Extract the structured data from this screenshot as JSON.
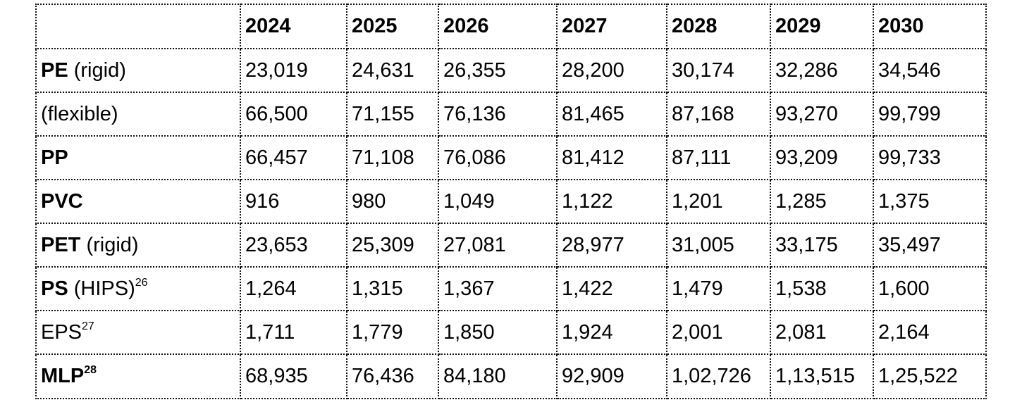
{
  "table": {
    "headers": [
      "",
      "2024",
      "2025",
      "2026",
      "2027",
      "2028",
      "2029",
      "2030"
    ],
    "rows": [
      {
        "label_bold": "PE",
        "label_rest": " (rigid)",
        "label_sup": "",
        "values": [
          "23,019",
          "24,631",
          "26,355",
          "28,200",
          "30,174",
          "32,286",
          "34,546"
        ]
      },
      {
        "label_bold": "",
        "label_rest": "(flexible)",
        "label_sup": "",
        "values": [
          "66,500",
          "71,155",
          "76,136",
          "81,465",
          "87,168",
          "93,270",
          "99,799"
        ]
      },
      {
        "label_bold": "PP",
        "label_rest": "",
        "label_sup": "",
        "values": [
          "66,457",
          "71,108",
          "76,086",
          "81,412",
          "87,111",
          "93,209",
          "99,733"
        ]
      },
      {
        "label_bold": "PVC",
        "label_rest": "",
        "label_sup": "",
        "values": [
          "916",
          "980",
          "1,049",
          "1,122",
          "1,201",
          "1,285",
          "1,375"
        ]
      },
      {
        "label_bold": "PET",
        "label_rest": " (rigid)",
        "label_sup": "",
        "values": [
          "23,653",
          "25,309",
          "27,081",
          "28,977",
          "31,005",
          "33,175",
          "35,497"
        ]
      },
      {
        "label_bold": "PS",
        "label_rest": " (HIPS)",
        "label_sup": "26",
        "values": [
          "1,264",
          "1,315",
          "1,367",
          "1,422",
          "1,479",
          "1,538",
          "1,600"
        ]
      },
      {
        "label_bold": "",
        "label_rest": "EPS",
        "label_sup": "27",
        "values": [
          "1,711",
          "1,779",
          "1,850",
          "1,924",
          "2,001",
          "2,081",
          "2,164"
        ]
      },
      {
        "label_bold": "MLP",
        "label_rest": "",
        "label_sup": "28",
        "sup_bold": true,
        "values": [
          "68,935",
          "76,436",
          "84,180",
          "92,909",
          "1,02,726",
          "1,13,515",
          "1,25,522"
        ]
      }
    ]
  }
}
